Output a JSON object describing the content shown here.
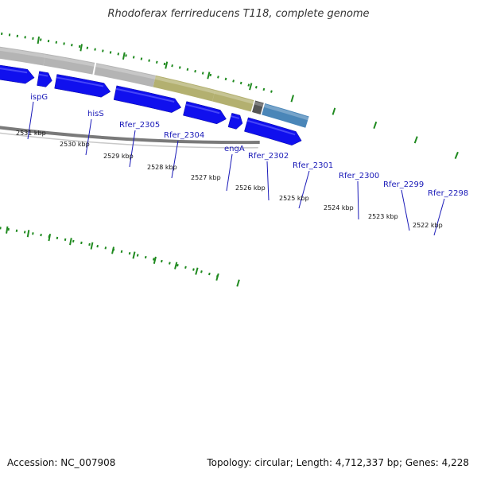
{
  "title": "Rhodoferax ferrireducens T118, complete genome",
  "footer": {
    "accession": "Accession: NC_007908",
    "summary": "Topology: circular; Length: 4,712,337 bp; Genes: 4,228"
  },
  "colors": {
    "gene_label": "#1a1ab8",
    "cds_arrow": "#1010ee",
    "tick": "#1f8a1f",
    "backbone": "#7a7a7a"
  },
  "genes": [
    {
      "name": "ispG",
      "color": "#6a5cc8"
    },
    {
      "name": "hisS",
      "color": "#ee7a80"
    },
    {
      "name": "Rfer_2305",
      "color": "#5a5a5a"
    },
    {
      "name": "Rfer_2304",
      "color": "#5a5a5a"
    },
    {
      "name": "engA",
      "color": "#b4b4b4"
    },
    {
      "name": "Rfer_2302",
      "color": "#b4b4b4"
    },
    {
      "name": "Rfer_2301",
      "color": "#b4b4b4"
    },
    {
      "name": "Rfer_2300",
      "color": "#b3b070"
    },
    {
      "name": "Rfer_2299",
      "color": "#b3b070"
    },
    {
      "name": "Rfer_2298",
      "color": "#555555"
    },
    {
      "name": "",
      "color": "#4a86b8"
    }
  ],
  "kbp_labels": [
    "2531 kbp",
    "2530 kbp",
    "2529 kbp",
    "2528 kbp",
    "2527 kbp",
    "2526 kbp",
    "2525 kbp",
    "2524 kbp",
    "2523 kbp",
    "2522 kbp"
  ]
}
